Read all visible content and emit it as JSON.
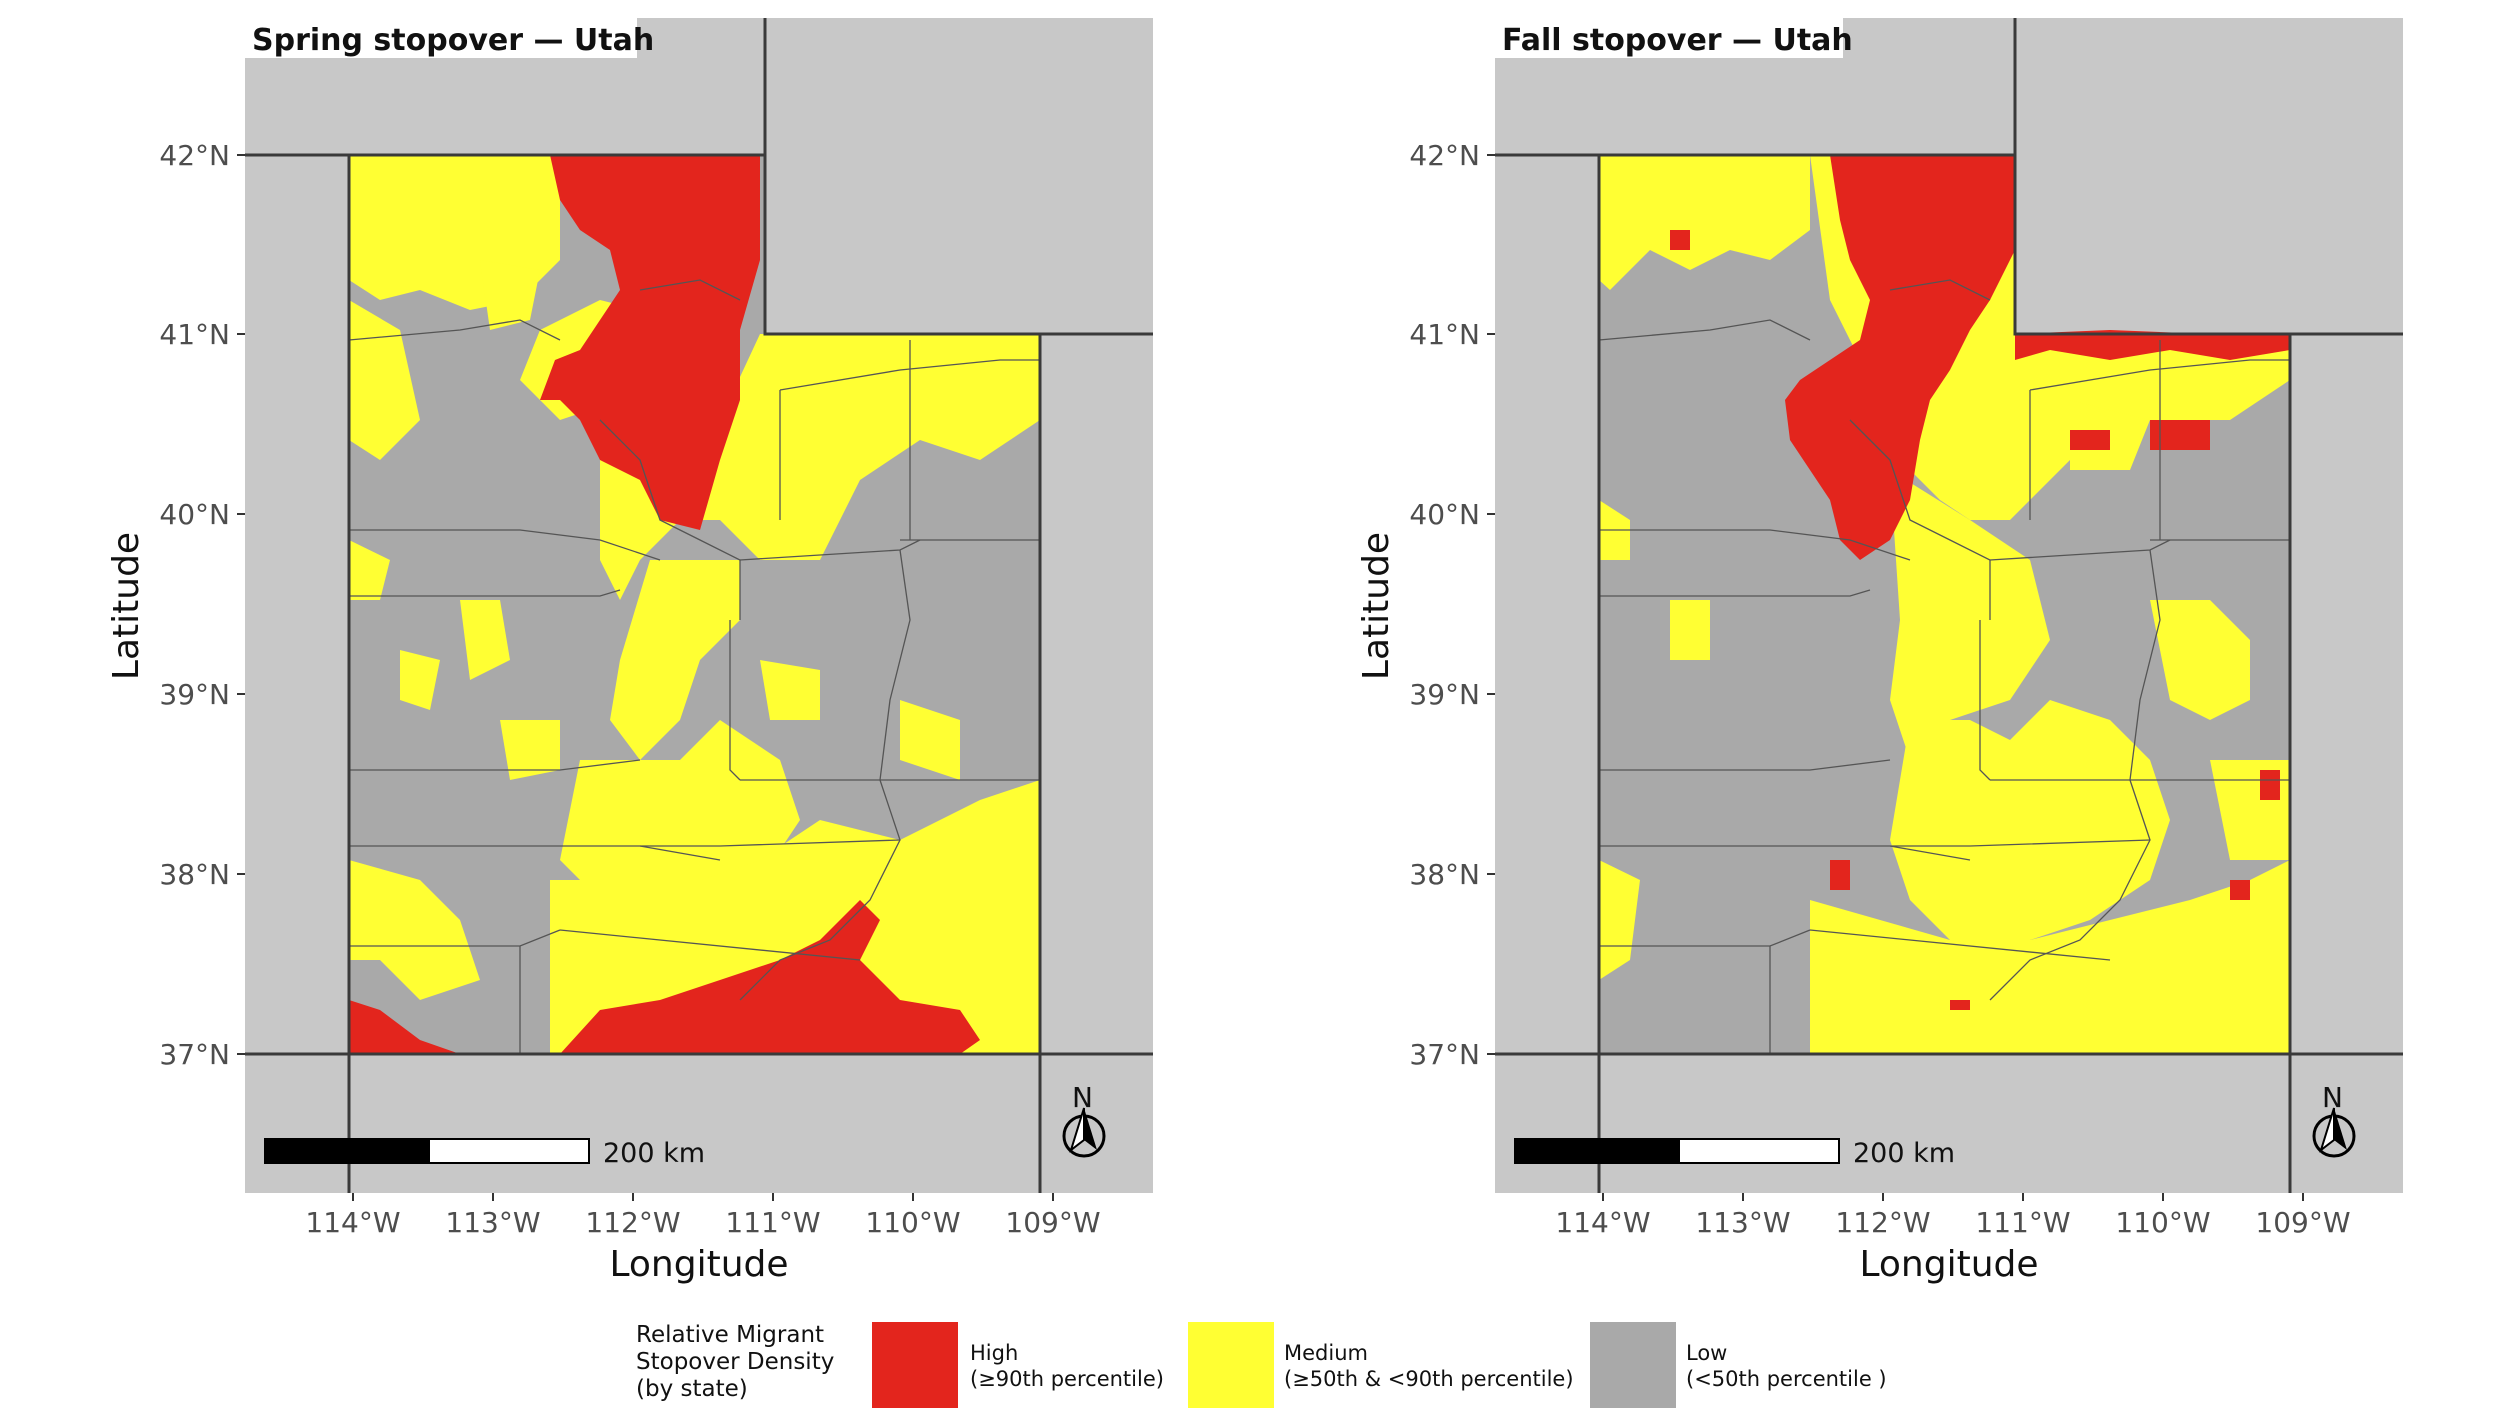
{
  "colors": {
    "high": "#e3251d",
    "medium": "#ffff33",
    "low": "#a9a9a9",
    "background": "#c8c8c8",
    "border": "#3a3a3a"
  },
  "panels": [
    {
      "title": "Spring stopover — Utah",
      "x_label": "Longitude",
      "y_label": "Latitude",
      "x_ticks": [
        "114°W",
        "113°W",
        "112°W",
        "111°W",
        "110°W",
        "109°W"
      ],
      "y_ticks": [
        "42°N",
        "41°N",
        "40°N",
        "39°N",
        "38°N",
        "37°N"
      ],
      "scale_label": "200 km",
      "north_label": "N"
    },
    {
      "title": "Fall stopover — Utah",
      "x_label": "Longitude",
      "y_label": "Latitude",
      "x_ticks": [
        "114°W",
        "113°W",
        "112°W",
        "111°W",
        "110°W",
        "109°W"
      ],
      "y_ticks": [
        "42°N",
        "41°N",
        "40°N",
        "39°N",
        "38°N",
        "37°N"
      ],
      "scale_label": "200 km",
      "north_label": "N"
    }
  ],
  "legend": {
    "title": "Relative Migrant Stopover Density (by state)",
    "items": [
      {
        "key": "high",
        "label_line1": "High",
        "label_line2": "(≥90th percentile)"
      },
      {
        "key": "medium",
        "label_line1": "Medium",
        "label_line2": "(≥50th & <90th percentile)"
      },
      {
        "key": "low",
        "label_line1": "Low",
        "label_line2": "(<50th percentile )"
      }
    ]
  }
}
